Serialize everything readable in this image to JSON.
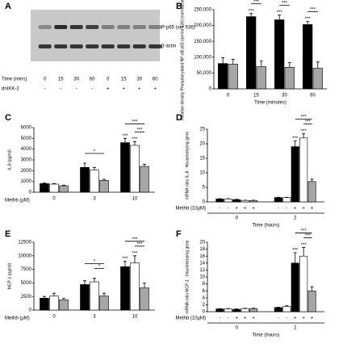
{
  "blot": {
    "label": "A",
    "bands": [
      "P-p65 (ser 536)",
      "β-actin"
    ],
    "time_label": "Time (mins)",
    "times": [
      "0",
      "15",
      "30",
      "60",
      "0",
      "15",
      "30",
      "60"
    ],
    "treatment_label": "dnIKK-2",
    "treatment": [
      "-",
      "-",
      "-",
      "-",
      "+",
      "+",
      "+",
      "+"
    ]
  },
  "chart_data": [
    {
      "type": "bar",
      "label": "B",
      "ylabel": "Relative density Phosphorylated NF-κB p65 (serine 536) (normalised to β-actin)",
      "xlabel": "Time (minutes)",
      "categories": [
        "0",
        "15",
        "30",
        "60"
      ],
      "ylim": [
        0,
        250000
      ],
      "yticks": [
        0,
        {
          "value": 50000,
          "label": "50,000"
        },
        {
          "value": 100000,
          "label": "100,000"
        },
        {
          "value": 150000,
          "label": "150,000"
        },
        {
          "value": 200000,
          "label": "200,000"
        },
        {
          "value": 250000,
          "label": "250,000"
        }
      ],
      "series": [
        {
          "color": "#000000",
          "values": [
            80000,
            228000,
            218000,
            203000
          ],
          "errors": [
            18000,
            10000,
            15000,
            10000
          ],
          "stars": [
            null,
            "***",
            "***",
            "***"
          ]
        },
        {
          "color": "#a6a6a6",
          "values": [
            78000,
            70000,
            68000,
            65000
          ],
          "errors": [
            15000,
            18000,
            15000,
            20000
          ],
          "stars": [
            null,
            null,
            null,
            null
          ]
        }
      ],
      "brackets": [
        {
          "group": 1,
          "from": 0,
          "to": 1,
          "label": "***"
        },
        {
          "group": 2,
          "from": 0,
          "to": 1,
          "label": "***"
        },
        {
          "group": 3,
          "from": 0,
          "to": 1,
          "label": "***"
        }
      ]
    },
    {
      "type": "bar",
      "label": "C",
      "ylabel": "IL-8 (pg/ml)",
      "xlabel": "Methb (μM)",
      "categories": [
        "0",
        "3",
        "10"
      ],
      "ylim": [
        0,
        6000
      ],
      "yticks": [
        0,
        1000,
        2000,
        3000,
        4000,
        5000,
        6000
      ],
      "series": [
        {
          "color": "#000000",
          "values": [
            800,
            2300,
            4600
          ],
          "errors": [
            50,
            400,
            400
          ],
          "stars": [
            null,
            null,
            "***"
          ]
        },
        {
          "color": "#ffffff",
          "values": [
            750,
            2050,
            4350
          ],
          "errors": [
            50,
            250,
            350
          ],
          "stars": [
            null,
            null,
            "***"
          ]
        },
        {
          "color": "#a6a6a6",
          "values": [
            600,
            1100,
            2400
          ],
          "errors": [
            50,
            100,
            200
          ],
          "stars": [
            null,
            null,
            null
          ]
        }
      ],
      "brackets": [
        {
          "group": 1,
          "from": 0,
          "to": 2,
          "label": "*"
        },
        {
          "group": 2,
          "from": 1,
          "to": 2,
          "label": "***"
        },
        {
          "group": 2,
          "from": 0,
          "to": 2,
          "label": "***"
        }
      ]
    },
    {
      "type": "bar",
      "label": "D",
      "ylabel": "mRNA ratio IL-8 : Housekeeping gene",
      "xlabel": "Time (hours)",
      "categories": [
        "0",
        "2"
      ],
      "ylim": [
        0,
        25
      ],
      "yticks": [
        0,
        5,
        10,
        15,
        20,
        25
      ],
      "row_label": "Methb (10μM)",
      "row_signs": [
        "-",
        "-",
        "+",
        "+",
        "+"
      ],
      "series": [
        {
          "color": "#000000",
          "values": [
            1,
            1.5
          ],
          "errors": [
            0.1,
            0.1
          ],
          "stars": [
            null,
            null
          ]
        },
        {
          "color": "#ffffff",
          "values": [
            1,
            1.5
          ],
          "errors": [
            0.1,
            0.1
          ],
          "stars": [
            null,
            null
          ]
        },
        {
          "color": "#000000",
          "values": [
            0.8,
            19
          ],
          "errors": [
            0.1,
            2
          ],
          "stars": [
            null,
            "***"
          ]
        },
        {
          "color": "#ffffff",
          "values": [
            0.5,
            22
          ],
          "errors": [
            0.1,
            1.5
          ],
          "stars": [
            null,
            "***"
          ]
        },
        {
          "color": "#a6a6a6",
          "values": [
            0.5,
            7
          ],
          "errors": [
            0.1,
            0.8
          ],
          "stars": [
            null,
            null
          ]
        }
      ],
      "brackets": [
        {
          "group": 1,
          "from": 3,
          "to": 4,
          "label": "***"
        },
        {
          "group": 1,
          "from": 2,
          "to": 4,
          "label": "***"
        }
      ]
    },
    {
      "type": "bar",
      "label": "E",
      "ylabel": "MCP-1 (pg/ml)",
      "xlabel": "Methb (μM)",
      "categories": [
        "0",
        "3",
        "10"
      ],
      "ylim": [
        0,
        12500
      ],
      "yticks": [
        0,
        2500,
        5000,
        7500,
        10000,
        12500
      ],
      "series": [
        {
          "color": "#000000",
          "values": [
            2200,
            4700,
            8000
          ],
          "errors": [
            300,
            700,
            1000
          ],
          "stars": [
            null,
            null,
            "***"
          ]
        },
        {
          "color": "#ffffff",
          "values": [
            2600,
            5200,
            8700
          ],
          "errors": [
            500,
            700,
            1300
          ],
          "stars": [
            null,
            null,
            "***"
          ]
        },
        {
          "color": "#a6a6a6",
          "values": [
            1900,
            2600,
            4100
          ],
          "errors": [
            300,
            500,
            900
          ],
          "stars": [
            null,
            null,
            null
          ]
        }
      ],
      "brackets": [
        {
          "group": 1,
          "from": 1,
          "to": 2,
          "label": "*"
        },
        {
          "group": 1,
          "from": 0,
          "to": 2,
          "label": "*"
        },
        {
          "group": 2,
          "from": 1,
          "to": 2,
          "label": "***"
        },
        {
          "group": 2,
          "from": 0,
          "to": 2,
          "label": "***"
        }
      ]
    },
    {
      "type": "bar",
      "label": "F",
      "ylabel": "mRNA ratio MCP-1 : Housekeeping gene",
      "xlabel": "Time (hours)",
      "categories": [
        "0",
        "2"
      ],
      "ylim": [
        0,
        20
      ],
      "yticks": [
        0,
        2,
        4,
        6,
        8,
        10,
        12,
        14,
        16,
        18,
        20
      ],
      "row_label": "Methb (10μM)",
      "row_signs": [
        "-",
        "-",
        "+",
        "+",
        "+"
      ],
      "series": [
        {
          "color": "#000000",
          "values": [
            0.8,
            1.2
          ],
          "errors": [
            0.1,
            0.1
          ],
          "stars": [
            null,
            null
          ]
        },
        {
          "color": "#ffffff",
          "values": [
            0.8,
            1.5
          ],
          "errors": [
            0.1,
            0.2
          ],
          "stars": [
            null,
            null
          ]
        },
        {
          "color": "#000000",
          "values": [
            0.7,
            14
          ],
          "errors": [
            0.1,
            3
          ],
          "stars": [
            null,
            "***"
          ]
        },
        {
          "color": "#ffffff",
          "values": [
            0.9,
            16
          ],
          "errors": [
            0.1,
            2.5
          ],
          "stars": [
            null,
            "***"
          ]
        },
        {
          "color": "#a6a6a6",
          "values": [
            0.9,
            6
          ],
          "errors": [
            0.1,
            1.2
          ],
          "stars": [
            null,
            null
          ]
        }
      ],
      "brackets": [
        {
          "group": 1,
          "from": 3,
          "to": 4,
          "label": "***"
        },
        {
          "group": 1,
          "from": 2,
          "to": 4,
          "label": "***"
        }
      ]
    }
  ]
}
